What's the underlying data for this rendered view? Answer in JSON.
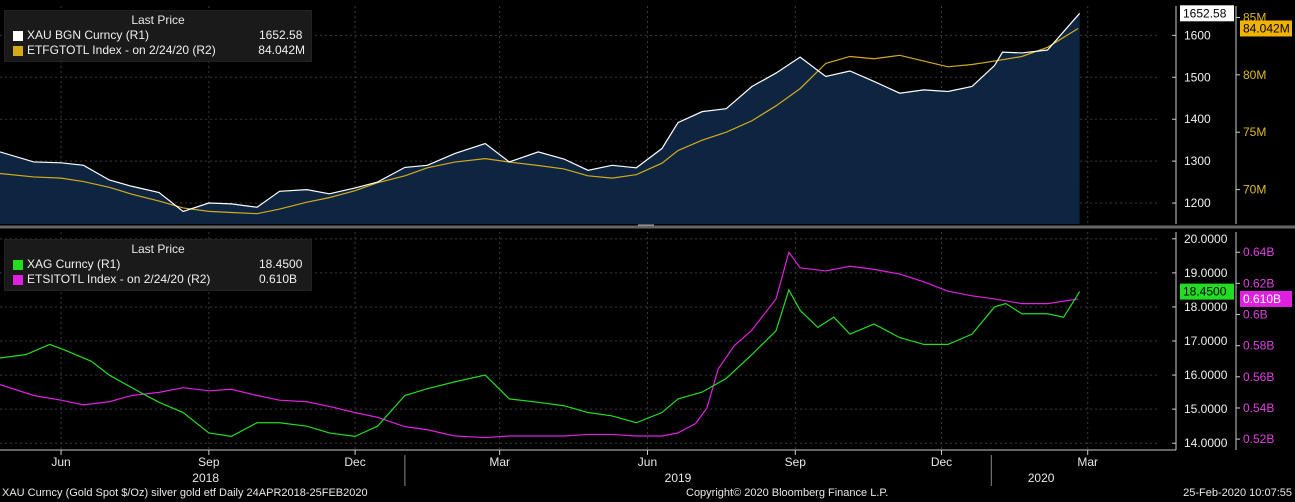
{
  "legend_top": {
    "header": "Last Price",
    "rows": [
      {
        "name": "XAU BGN Curncy  (R1)",
        "value": "1652.58",
        "color": "#ffffff"
      },
      {
        "name": "ETFGTOTL Index -  on 2/24/20  (R2)",
        "value": "84.042M",
        "color": "#d4aa1c"
      }
    ]
  },
  "legend_bottom": {
    "header": "Last Price",
    "rows": [
      {
        "name": "XAG Curncy  (R1)",
        "value": "18.4500",
        "color": "#22dd22"
      },
      {
        "name": "ETSITOTL Index -  on 2/24/20  (R2)",
        "value": "0.610B",
        "color": "#e020e0"
      }
    ]
  },
  "footer": {
    "left": "XAU Curncy (Gold Spot  $/Oz) silver gold etf  Daily 24APR2018-25FEB2020",
    "center": "Copyright© 2020 Bloomberg Finance L.P.",
    "right": "25-Feb-2020 10:07:55"
  },
  "colors": {
    "gold_line": "#ffffff",
    "gold_etf": "#d4aa1c",
    "gold_area": "#0d2540",
    "silver": "#22dd22",
    "silver_etf": "#e020e0",
    "axis": "#cccccc"
  },
  "chart_data": [
    {
      "type": "area",
      "title": "",
      "series": [
        {
          "name": "XAU BGN Curncy",
          "axis": "R1",
          "x": [
            "2018-04-24",
            "2018-05-15",
            "2018-06-01",
            "2018-06-15",
            "2018-07-01",
            "2018-07-15",
            "2018-08-01",
            "2018-08-16",
            "2018-09-01",
            "2018-09-15",
            "2018-10-01",
            "2018-10-15",
            "2018-11-01",
            "2018-11-15",
            "2018-12-01",
            "2018-12-15",
            "2019-01-01",
            "2019-01-15",
            "2019-02-01",
            "2019-02-20",
            "2019-03-07",
            "2019-03-25",
            "2019-04-10",
            "2019-04-25",
            "2019-05-10",
            "2019-05-25",
            "2019-06-10",
            "2019-06-20",
            "2019-07-05",
            "2019-07-20",
            "2019-08-05",
            "2019-08-20",
            "2019-09-04",
            "2019-09-20",
            "2019-10-05",
            "2019-10-20",
            "2019-11-05",
            "2019-11-20",
            "2019-12-05",
            "2019-12-20",
            "2020-01-03",
            "2020-01-08",
            "2020-01-20",
            "2020-02-05",
            "2020-02-25"
          ],
          "y": [
            1322,
            1298,
            1296,
            1290,
            1255,
            1240,
            1225,
            1180,
            1200,
            1198,
            1190,
            1228,
            1232,
            1222,
            1236,
            1250,
            1285,
            1290,
            1318,
            1342,
            1298,
            1322,
            1305,
            1278,
            1290,
            1284,
            1330,
            1392,
            1418,
            1425,
            1478,
            1510,
            1548,
            1502,
            1515,
            1490,
            1462,
            1470,
            1466,
            1478,
            1528,
            1560,
            1558,
            1565,
            1652.58
          ]
        },
        {
          "name": "ETFGTOTL Index",
          "axis": "R2",
          "x": [
            "2018-04-24",
            "2018-05-15",
            "2018-06-01",
            "2018-06-15",
            "2018-07-01",
            "2018-07-15",
            "2018-08-01",
            "2018-08-16",
            "2018-09-01",
            "2018-09-15",
            "2018-10-01",
            "2018-10-15",
            "2018-11-01",
            "2018-11-15",
            "2018-12-01",
            "2018-12-15",
            "2019-01-01",
            "2019-01-15",
            "2019-02-01",
            "2019-02-20",
            "2019-03-07",
            "2019-03-25",
            "2019-04-10",
            "2019-04-25",
            "2019-05-10",
            "2019-05-25",
            "2019-06-10",
            "2019-06-20",
            "2019-07-05",
            "2019-07-20",
            "2019-08-05",
            "2019-08-20",
            "2019-09-04",
            "2019-09-20",
            "2019-10-05",
            "2019-10-20",
            "2019-11-05",
            "2019-11-20",
            "2019-12-05",
            "2019-12-20",
            "2020-01-03",
            "2020-01-20",
            "2020-02-05",
            "2020-02-24"
          ],
          "y": [
            71.4,
            71.1,
            71.0,
            70.7,
            70.2,
            69.6,
            69.0,
            68.4,
            68.1,
            68.0,
            67.9,
            68.3,
            68.9,
            69.3,
            69.9,
            70.6,
            71.2,
            71.9,
            72.4,
            72.7,
            72.4,
            72.1,
            71.8,
            71.2,
            71.0,
            71.3,
            72.3,
            73.4,
            74.3,
            75.0,
            76.0,
            77.3,
            78.8,
            81.0,
            81.6,
            81.4,
            81.7,
            81.2,
            80.7,
            80.9,
            81.2,
            81.6,
            82.4,
            84.042
          ]
        }
      ],
      "y_right1": {
        "ticks": [
          1200,
          1300,
          1400,
          1500,
          1600
        ],
        "range": [
          1150,
          1670
        ]
      },
      "y_right2": {
        "ticks": [
          "70M",
          "75M",
          "80M",
          "85M"
        ],
        "range": [
          67.0,
          86.0
        ]
      },
      "last_labels": [
        "1652.58",
        "84.042M"
      ]
    },
    {
      "type": "line",
      "title": "",
      "series": [
        {
          "name": "XAG Curncy",
          "axis": "R1",
          "x": [
            "2018-04-24",
            "2018-05-10",
            "2018-05-25",
            "2018-06-05",
            "2018-06-20",
            "2018-07-01",
            "2018-07-20",
            "2018-08-01",
            "2018-08-16",
            "2018-09-01",
            "2018-09-15",
            "2018-10-01",
            "2018-10-15",
            "2018-11-01",
            "2018-11-15",
            "2018-12-01",
            "2018-12-15",
            "2019-01-01",
            "2019-01-15",
            "2019-02-01",
            "2019-02-20",
            "2019-03-07",
            "2019-03-25",
            "2019-04-10",
            "2019-04-25",
            "2019-05-10",
            "2019-05-25",
            "2019-06-10",
            "2019-06-20",
            "2019-07-05",
            "2019-07-20",
            "2019-08-05",
            "2019-08-20",
            "2019-08-28",
            "2019-09-04",
            "2019-09-15",
            "2019-09-25",
            "2019-10-05",
            "2019-10-20",
            "2019-11-05",
            "2019-11-20",
            "2019-12-05",
            "2019-12-20",
            "2020-01-03",
            "2020-01-10",
            "2020-01-20",
            "2020-02-05",
            "2020-02-15",
            "2020-02-25"
          ],
          "y": [
            16.5,
            16.6,
            16.9,
            16.7,
            16.4,
            16.0,
            15.5,
            15.2,
            14.9,
            14.3,
            14.2,
            14.6,
            14.6,
            14.5,
            14.3,
            14.2,
            14.5,
            15.4,
            15.6,
            15.8,
            16.0,
            15.3,
            15.2,
            15.1,
            14.9,
            14.8,
            14.6,
            14.9,
            15.3,
            15.5,
            15.9,
            16.6,
            17.3,
            18.5,
            17.9,
            17.4,
            17.7,
            17.2,
            17.5,
            17.1,
            16.9,
            16.9,
            17.2,
            18.0,
            18.1,
            17.8,
            17.8,
            17.7,
            18.45
          ]
        },
        {
          "name": "ETSITOTL Index",
          "axis": "R2",
          "x": [
            "2018-04-24",
            "2018-05-15",
            "2018-06-01",
            "2018-06-15",
            "2018-07-01",
            "2018-07-15",
            "2018-08-01",
            "2018-08-16",
            "2018-09-01",
            "2018-09-15",
            "2018-10-01",
            "2018-10-15",
            "2018-11-01",
            "2018-11-15",
            "2018-12-01",
            "2018-12-15",
            "2019-01-01",
            "2019-01-15",
            "2019-02-01",
            "2019-02-20",
            "2019-03-07",
            "2019-03-25",
            "2019-04-10",
            "2019-04-25",
            "2019-05-10",
            "2019-05-25",
            "2019-06-10",
            "2019-06-20",
            "2019-07-01",
            "2019-07-08",
            "2019-07-15",
            "2019-07-25",
            "2019-08-05",
            "2019-08-20",
            "2019-08-28",
            "2019-09-04",
            "2019-09-20",
            "2019-10-05",
            "2019-10-20",
            "2019-11-05",
            "2019-11-20",
            "2019-12-05",
            "2019-12-20",
            "2020-01-03",
            "2020-01-20",
            "2020-02-05",
            "2020-02-24"
          ],
          "y": [
            0.555,
            0.548,
            0.545,
            0.542,
            0.544,
            0.548,
            0.55,
            0.553,
            0.551,
            0.552,
            0.548,
            0.545,
            0.544,
            0.541,
            0.537,
            0.534,
            0.528,
            0.526,
            0.522,
            0.521,
            0.522,
            0.522,
            0.522,
            0.523,
            0.523,
            0.522,
            0.522,
            0.524,
            0.53,
            0.54,
            0.565,
            0.58,
            0.59,
            0.61,
            0.64,
            0.63,
            0.628,
            0.631,
            0.629,
            0.626,
            0.621,
            0.615,
            0.612,
            0.61,
            0.607,
            0.607,
            0.61
          ]
        }
      ],
      "y_right1": {
        "ticks": [
          "14.0000",
          "15.0000",
          "16.0000",
          "17.0000",
          "18.0000",
          "19.0000",
          "20.0000"
        ],
        "range": [
          13.8,
          20.2
        ]
      },
      "y_right2": {
        "ticks": [
          "0.52B",
          "0.54B",
          "0.56B",
          "0.58B",
          "0.6B",
          "0.62B",
          "0.64B"
        ],
        "range": [
          0.513,
          0.653
        ]
      },
      "last_labels": [
        "18.4500",
        "0.610B"
      ]
    }
  ],
  "x_axis": {
    "months": [
      {
        "label": "Jun",
        "date": "2018-06-01"
      },
      {
        "label": "Sep",
        "date": "2018-09-01"
      },
      {
        "label": "Dec",
        "date": "2018-12-01"
      },
      {
        "label": "Mar",
        "date": "2019-03-01"
      },
      {
        "label": "Jun",
        "date": "2019-06-01"
      },
      {
        "label": "Sep",
        "date": "2019-09-01"
      },
      {
        "label": "Dec",
        "date": "2019-12-01"
      },
      {
        "label": "Mar",
        "date": "2020-03-01"
      }
    ],
    "years": [
      {
        "label": "2018",
        "date": "2018-08-30"
      },
      {
        "label": "2019",
        "date": "2019-06-20"
      },
      {
        "label": "2020",
        "date": "2020-02-01"
      }
    ],
    "range": [
      "2018-04-24",
      "2020-04-15"
    ]
  }
}
